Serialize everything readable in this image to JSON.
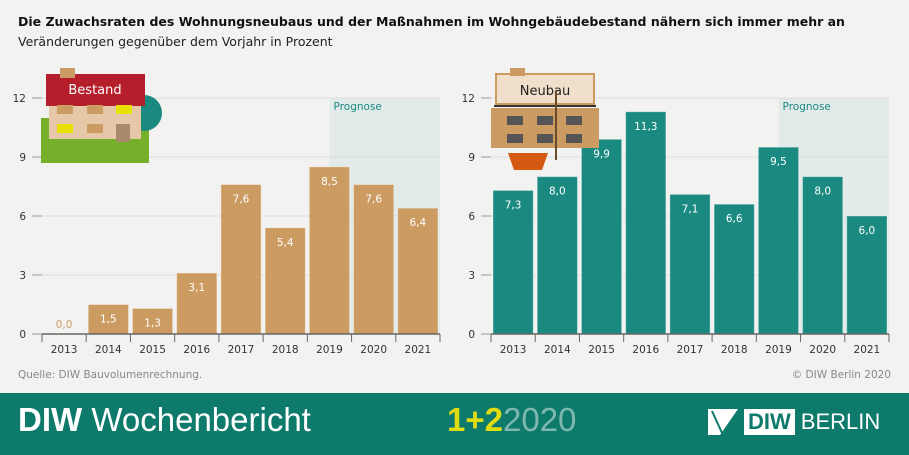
{
  "title": "Die Zuwachsraten des Wohnungsneubaus und der Maßnahmen im Wohngebäudebestand nähern sich immer mehr an",
  "subtitle": "Veränderungen gegenüber dem Vorjahr in Prozent",
  "source": "Quelle: DIW Bauvolumenrechnung.",
  "copyright": "© DIW Berlin 2020",
  "footer": {
    "brand_bold": "DIW",
    "brand": "Wochenbericht",
    "issue": "1+2",
    "year": "2020",
    "logo_diw": "DIW",
    "logo_berlin": "BERLIN"
  },
  "chart_data": [
    {
      "type": "bar",
      "title": "Bestand",
      "categories": [
        "2013",
        "2014",
        "2015",
        "2016",
        "2017",
        "2018",
        "2019",
        "2020",
        "2021"
      ],
      "values": [
        0.0,
        1.5,
        1.3,
        3.1,
        7.6,
        5.4,
        8.5,
        7.6,
        6.4
      ],
      "labels": [
        "0,0",
        "1,5",
        "1,3",
        "3,1",
        "7,6",
        "5,4",
        "8,5",
        "7,6",
        "6,4"
      ],
      "ylim": [
        0,
        12
      ],
      "yticks": [
        0,
        3,
        6,
        9,
        12
      ],
      "grid": true,
      "color": "#cc9b62",
      "forecast_label": "Prognose",
      "forecast_from": "2020"
    },
    {
      "type": "bar",
      "title": "Neubau",
      "categories": [
        "2013",
        "2014",
        "2015",
        "2016",
        "2017",
        "2018",
        "2019",
        "2020",
        "2021"
      ],
      "values": [
        7.3,
        8.0,
        9.9,
        11.3,
        7.1,
        6.6,
        9.5,
        8.0,
        6.0
      ],
      "labels": [
        "7,3",
        "8,0",
        "9,9",
        "11,3",
        "7,1",
        "6,6",
        "9,5",
        "8,0",
        "6,0"
      ],
      "ylim": [
        0,
        12
      ],
      "yticks": [
        0,
        3,
        6,
        9,
        12
      ],
      "grid": true,
      "color": "#1a8a80",
      "forecast_label": "Prognose",
      "forecast_from": "2020"
    }
  ]
}
